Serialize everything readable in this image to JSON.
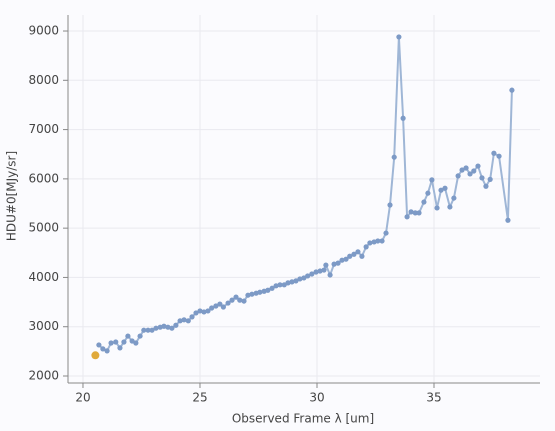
{
  "chart_data": {
    "type": "line",
    "xlabel": "Observed Frame λ [um]",
    "ylabel": "HDU#0[MJy/sr]",
    "xlim": [
      19.36,
      39.53
    ],
    "ylim": [
      1858,
      9325
    ],
    "xticks": [
      20,
      25,
      30,
      35
    ],
    "yticks": [
      2000,
      3000,
      4000,
      5000,
      6000,
      7000,
      8000,
      9000
    ],
    "grid": true,
    "series": [
      {
        "color": "#7d9ac6",
        "line_color": "#9fb6d6",
        "x": [
          20.68,
          20.85,
          21.03,
          21.2,
          21.4,
          21.58,
          21.75,
          21.92,
          22.1,
          22.26,
          22.44,
          22.6,
          22.78,
          22.95,
          23.12,
          23.3,
          23.46,
          23.63,
          23.8,
          23.97,
          24.15,
          24.32,
          24.5,
          24.66,
          24.83,
          25.0,
          25.17,
          25.34,
          25.5,
          25.68,
          25.85,
          26.0,
          26.2,
          26.37,
          26.54,
          26.7,
          26.88,
          27.05,
          27.22,
          27.4,
          27.56,
          27.74,
          27.9,
          28.08,
          28.25,
          28.42,
          28.6,
          28.76,
          28.93,
          29.1,
          29.27,
          29.44,
          29.6,
          29.78,
          29.96,
          30.13,
          30.3,
          30.38,
          30.56,
          30.73,
          30.9,
          31.07,
          31.24,
          31.4,
          31.58,
          31.75,
          31.92,
          32.1,
          32.26,
          32.44,
          32.6,
          32.78,
          32.95,
          33.12,
          33.3,
          33.5,
          33.68,
          33.85,
          34.02,
          34.2,
          34.36,
          34.57,
          34.74,
          34.91,
          35.13,
          35.3,
          35.47,
          35.68,
          35.85,
          36.03,
          36.2,
          36.37,
          36.54,
          36.7,
          36.88,
          37.05,
          37.22,
          37.4,
          37.56,
          37.78,
          38.16,
          38.33
        ],
        "values": [
          2630,
          2550,
          2510,
          2670,
          2690,
          2570,
          2690,
          2810,
          2710,
          2670,
          2810,
          2930,
          2930,
          2930,
          2970,
          2990,
          3010,
          2990,
          2970,
          3030,
          3120,
          3140,
          3120,
          3200,
          3280,
          3320,
          3300,
          3320,
          3380,
          3420,
          3460,
          3400,
          3480,
          3540,
          3600,
          3540,
          3520,
          3640,
          3660,
          3680,
          3700,
          3720,
          3740,
          3780,
          3830,
          3850,
          3850,
          3890,
          3910,
          3930,
          3970,
          3990,
          4030,
          4070,
          4110,
          4130,
          4150,
          4250,
          4050,
          4270,
          4290,
          4350,
          4370,
          4430,
          4470,
          4520,
          4430,
          4620,
          4700,
          4720,
          4740,
          4740,
          4900,
          5470,
          6440,
          8880,
          7230,
          5230,
          5330,
          5310,
          5310,
          5530,
          5710,
          5980,
          5410,
          5770,
          5810,
          5430,
          5610,
          6060,
          6180,
          6220,
          6100,
          6160,
          6260,
          6020,
          5850,
          5990,
          6520,
          6460,
          5160,
          7800
        ]
      },
      {
        "color": "#e0a93a",
        "x": [
          20.53
        ],
        "values": [
          2420
        ]
      }
    ]
  }
}
